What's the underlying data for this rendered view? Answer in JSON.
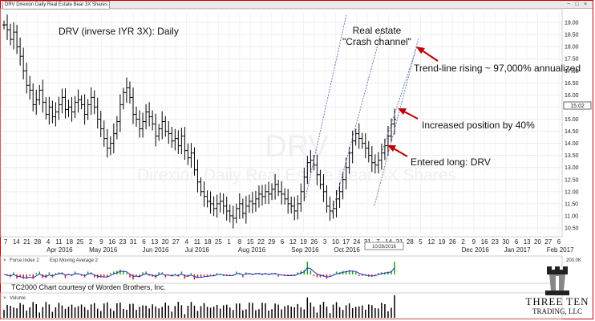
{
  "window": {
    "symbol_title": "DRV Direxion Daily Real Estate Bear 3X Shares",
    "controls": [
      "−",
      "□",
      "×"
    ]
  },
  "chart_data": {
    "type": "ohlc",
    "title": "DRV (inverse IYR 3X):  Daily",
    "watermark_symbol": "DRV",
    "watermark_name": "Direxion Daily Real Estate Bear 3X Shares",
    "y_ticks": [
      "19.00",
      "18.50",
      "18.00",
      "17.50",
      "17.00",
      "16.50",
      "16.00",
      "15.50",
      "15.00",
      "14.50",
      "14.00",
      "13.50",
      "13.00",
      "12.50",
      "12.00",
      "11.50",
      "11.00",
      "10.50"
    ],
    "ylim": [
      10.3,
      19.4
    ],
    "price_label": "15.02",
    "x_day_ticks": [
      "7",
      "14",
      "21",
      "28",
      "4",
      "11",
      "18",
      "25",
      "2",
      "9",
      "16",
      "23",
      "31",
      "6",
      "13",
      "20",
      "27",
      "4",
      "11",
      "18",
      "25",
      "1",
      "8",
      "15",
      "22",
      "29",
      "6",
      "12",
      "19",
      "26",
      "3",
      "10",
      "17",
      "24",
      "31",
      "7",
      "14",
      "21",
      "28",
      "5",
      "12",
      "19",
      "26",
      "2",
      "9",
      "16",
      "23",
      "30",
      "6",
      "13",
      "20",
      "27",
      "6"
    ],
    "x_month_labels": [
      "Apr 2016",
      "May 2016",
      "Jun 2016",
      "Jul 2016",
      "Aug 2016",
      "Sep 2016",
      "Oct 2016",
      "Dec 2016",
      "Jan 2017",
      "Feb 2017"
    ],
    "date_marker": "10/28/2016",
    "prices": [
      18.9,
      18.7,
      18.3,
      18.6,
      18.0,
      17.6,
      17.0,
      16.4,
      16.2,
      15.6,
      15.8,
      16.2,
      15.7,
      15.2,
      15.5,
      15.1,
      15.3,
      15.6,
      15.9,
      15.4,
      15.5,
      15.3,
      15.7,
      15.8,
      15.6,
      15.2,
      15.6,
      15.9,
      15.5,
      15.0,
      14.6,
      14.2,
      13.8,
      14.0,
      14.4,
      14.9,
      15.6,
      16.1,
      16.3,
      15.9,
      15.2,
      15.0,
      14.6,
      14.9,
      15.3,
      15.1,
      14.8,
      14.3,
      14.6,
      14.9,
      14.5,
      14.4,
      14.1,
      14.2,
      13.9,
      14.3,
      13.7,
      13.4,
      13.6,
      12.9,
      12.4,
      12.0,
      11.8,
      11.6,
      11.5,
      11.3,
      11.5,
      11.6,
      11.4,
      11.2,
      11.0,
      10.9,
      11.3,
      11.5,
      11.1,
      11.4,
      11.6,
      11.5,
      11.7,
      11.9,
      11.8,
      12.0,
      11.9,
      12.1,
      12.3,
      12.0,
      11.9,
      11.7,
      11.5,
      11.4,
      11.2,
      11.5,
      12.0,
      12.6,
      13.2,
      13.3,
      13.1,
      12.7,
      12.3,
      12.0,
      11.4,
      11.2,
      11.3,
      11.7,
      12.0,
      12.5,
      13.0,
      13.6,
      14.1,
      14.4,
      14.2,
      14.0,
      13.8,
      13.5,
      13.2,
      13.1,
      13.3,
      13.6,
      13.9,
      14.3,
      14.8,
      15.0
    ],
    "trend_channel_label": "Real estate\n\"Crash channel\"",
    "annotations": [
      {
        "id": "trend",
        "text": "Trend-line rising ~ 97,000% annualized"
      },
      {
        "id": "increase",
        "text": "Increased position by 40%"
      },
      {
        "id": "entry",
        "text": "Entered long:  DRV"
      }
    ],
    "lower_panels": {
      "force_index_label": "Force Index 2",
      "ema_label": "Exp Moving Average 2",
      "force_index_ylabel": "200.0K",
      "volume_label": "Volume",
      "credit": "TC2000 Chart courtesy of Worden Brothers, Inc."
    },
    "colors": {
      "bar": "#000000",
      "trend": "#6a7fb5",
      "arrow": "#c00000",
      "ema": "#1f2fbf",
      "force_up": "#1f9f1f",
      "force_dn": "#d02020",
      "frame": "#cc0000"
    }
  },
  "logo": {
    "line1": "THREE TEN",
    "line2": "TRADING, LLC"
  }
}
